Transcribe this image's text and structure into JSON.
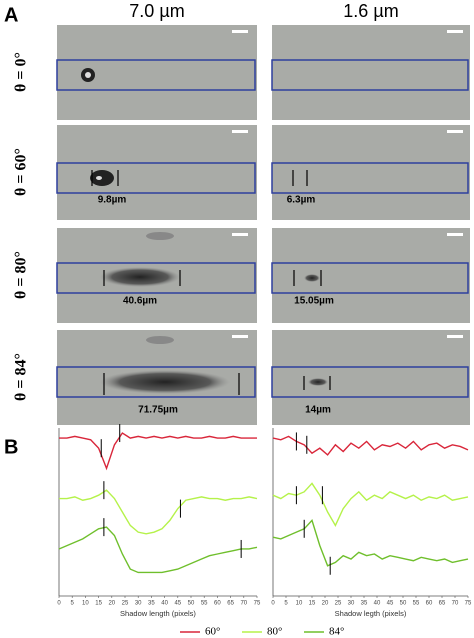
{
  "panel_a": {
    "label": "A",
    "column_headers": [
      "7.0 µm",
      "1.6 µm"
    ],
    "rows": [
      {
        "label": "θ = 0°"
      },
      {
        "label": "θ = 60°",
        "left_measurement": "9.8µm",
        "right_measurement": "6.3µm"
      },
      {
        "label": "θ = 80°",
        "left_measurement": "40.6µm",
        "right_measurement": "15.05µm"
      },
      {
        "label": "θ = 84°",
        "left_measurement": "71.75µm",
        "right_measurement": "14µm"
      }
    ]
  },
  "panel_b": {
    "label": "B"
  },
  "chart_data": [
    {
      "type": "line",
      "x_label": "Shadow length (pixels)",
      "x": [
        0,
        3,
        6,
        9,
        12,
        15,
        18,
        21,
        24,
        27,
        30,
        33,
        36,
        39,
        42,
        45,
        48,
        51,
        54,
        57,
        60,
        63,
        66,
        69,
        72,
        75
      ],
      "xlim": [
        0,
        75
      ],
      "xticks": [
        0,
        5,
        10,
        15,
        20,
        25,
        30,
        35,
        40,
        45,
        50,
        55,
        60,
        65,
        70,
        75
      ],
      "ylim": [
        0,
        100
      ],
      "series": [
        {
          "name": "60°",
          "color": "#d9263a",
          "markers": [
            16,
            23
          ],
          "values": [
            94,
            94,
            95,
            94,
            93,
            88,
            76,
            90,
            97,
            94,
            95,
            94,
            95,
            94,
            95,
            94,
            95,
            94,
            94,
            95,
            94,
            94,
            95,
            94,
            94,
            94
          ]
        },
        {
          "name": "80°",
          "color": "#b5f24a",
          "markers": [
            17,
            46
          ],
          "values": [
            58,
            58,
            59,
            57,
            58,
            60,
            63,
            58,
            50,
            42,
            38,
            37,
            38,
            40,
            45,
            52,
            57,
            58,
            59,
            58,
            58,
            57,
            58,
            58,
            59,
            58
          ]
        },
        {
          "name": "84°",
          "color": "#6fbf2c",
          "markers": [
            17,
            69
          ],
          "values": [
            28,
            30,
            32,
            34,
            37,
            40,
            41,
            36,
            25,
            16,
            14,
            14,
            14,
            14,
            15,
            16,
            18,
            20,
            22,
            24,
            25,
            26,
            27,
            28,
            28,
            29
          ]
        }
      ]
    },
    {
      "type": "line",
      "x_label": "Shadow legth (pixels)",
      "x": [
        0,
        3,
        6,
        9,
        12,
        15,
        18,
        21,
        24,
        27,
        30,
        33,
        36,
        39,
        42,
        45,
        48,
        51,
        54,
        57,
        60,
        63,
        66,
        69,
        72,
        75
      ],
      "xlim": [
        0,
        75
      ],
      "xticks": [
        0,
        5,
        10,
        15,
        20,
        25,
        30,
        35,
        40,
        45,
        50,
        55,
        60,
        65,
        70,
        75
      ],
      "ylim": [
        0,
        100
      ],
      "series": [
        {
          "color": "#d9263a",
          "markers": [
            9,
            13
          ],
          "values": [
            94,
            93,
            95,
            92,
            90,
            85,
            88,
            84,
            90,
            86,
            91,
            88,
            92,
            87,
            90,
            89,
            91,
            88,
            92,
            87,
            90,
            91,
            88,
            90,
            89,
            87
          ]
        },
        {
          "color": "#b5f24a",
          "markers": [
            9,
            19
          ],
          "values": [
            60,
            58,
            61,
            60,
            62,
            67,
            60,
            50,
            42,
            52,
            58,
            62,
            57,
            60,
            58,
            62,
            60,
            58,
            60,
            57,
            59,
            58,
            60,
            57,
            58,
            59
          ]
        },
        {
          "color": "#6fbf2c",
          "markers": [
            12,
            22
          ],
          "values": [
            35,
            34,
            36,
            38,
            40,
            45,
            30,
            18,
            20,
            24,
            22,
            26,
            24,
            25,
            22,
            24,
            23,
            22,
            21,
            23,
            22,
            21,
            22,
            20,
            21,
            22
          ]
        }
      ]
    }
  ]
}
